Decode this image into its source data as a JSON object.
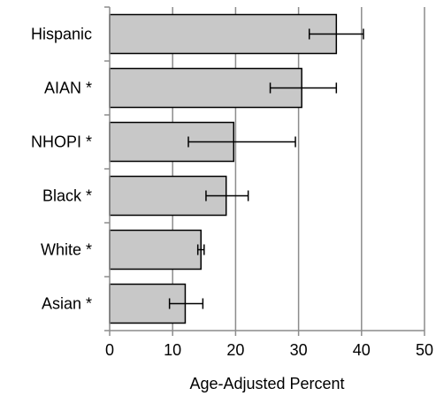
{
  "chart_data": {
    "type": "bar",
    "orientation": "horizontal",
    "categories": [
      "Hispanic",
      "AIAN *",
      "NHOPI *",
      "Black *",
      "White *",
      "Asian *"
    ],
    "values": [
      36.0,
      30.5,
      19.7,
      18.5,
      14.5,
      12.0
    ],
    "error_low": [
      31.7,
      25.5,
      12.5,
      15.3,
      14.0,
      9.5
    ],
    "error_high": [
      40.3,
      36.0,
      29.5,
      22.0,
      15.0,
      14.8
    ],
    "xlabel": "Age-Adjusted Percent",
    "xlim": [
      0,
      50
    ],
    "xticks": [
      0,
      10,
      20,
      30,
      40,
      50
    ],
    "grid": "vertical",
    "colors": {
      "bar_fill": "#c8c8c8",
      "bar_stroke": "#000000",
      "grid": "#8c8c8c",
      "error_bar": "#000000"
    }
  }
}
